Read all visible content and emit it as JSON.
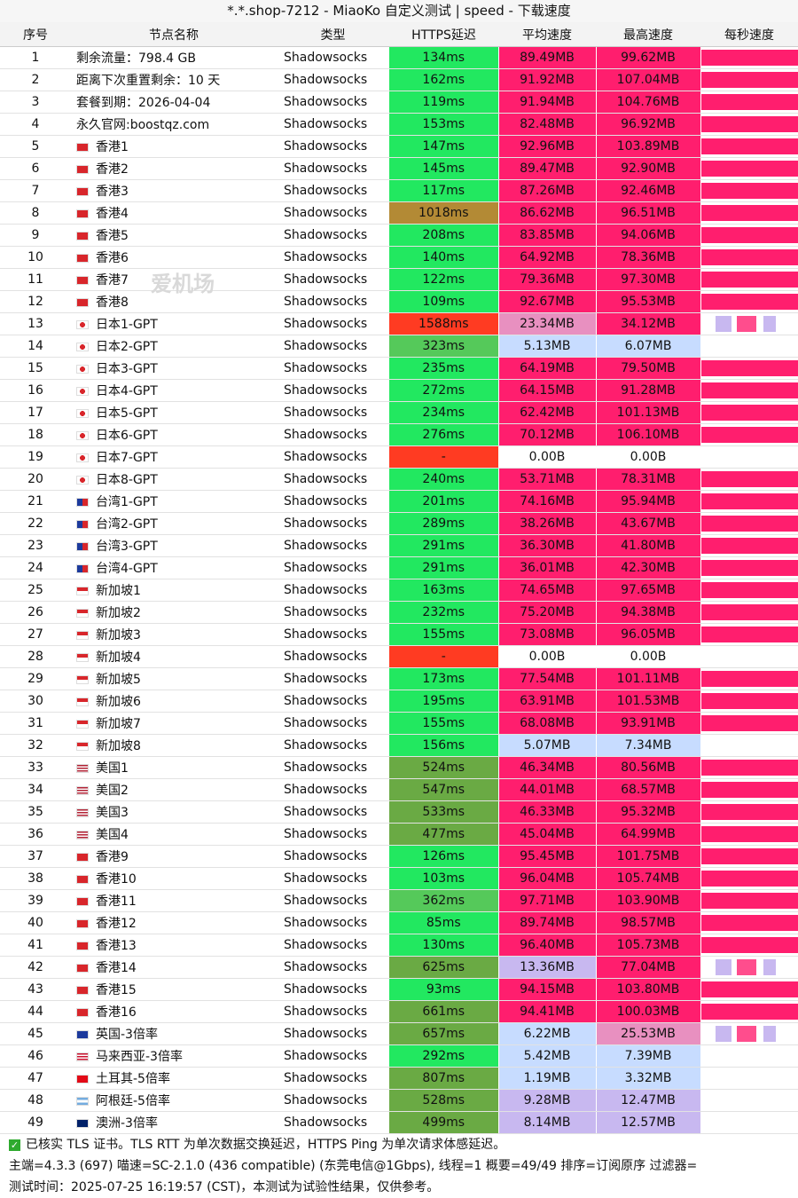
{
  "window": {
    "title": "*.*.shop-7212 - MiaoKo 自定义测试 | speed - 下载速度"
  },
  "watermark": {
    "text": "爱机场"
  },
  "columns": [
    "序号",
    "节点名称",
    "类型",
    "HTTPS延迟",
    "平均速度",
    "最高速度",
    "每秒速度"
  ],
  "colors": {
    "green": "#22e860",
    "green_mid": "#55c95a",
    "green_dark": "#6aaa44",
    "brown": "#b38a35",
    "red": "#ff3b22",
    "pink": "#ff1e6e",
    "pink_light": "#e890c0",
    "lavender": "#c8b8f0",
    "blue_light": "#c7dcff",
    "white": "#ffffff"
  },
  "rows": [
    {
      "idx": "1",
      "flag": "none",
      "name": "剩余流量：798.4 GB",
      "type": "Shadowsocks",
      "lat": "134ms",
      "lat_c": "green",
      "avg": "89.49MB",
      "avg_c": "pink",
      "max": "99.62MB",
      "max_c": "pink",
      "rate": "full"
    },
    {
      "idx": "2",
      "flag": "none",
      "name": "距离下次重置剩余：10 天",
      "type": "Shadowsocks",
      "lat": "162ms",
      "lat_c": "green",
      "avg": "91.92MB",
      "avg_c": "pink",
      "max": "107.04MB",
      "max_c": "pink",
      "rate": "full"
    },
    {
      "idx": "3",
      "flag": "none",
      "name": "套餐到期：2026-04-04",
      "type": "Shadowsocks",
      "lat": "119ms",
      "lat_c": "green",
      "avg": "91.94MB",
      "avg_c": "pink",
      "max": "104.76MB",
      "max_c": "pink",
      "rate": "full"
    },
    {
      "idx": "4",
      "flag": "none",
      "name": "永久官网:boostqz.com",
      "type": "Shadowsocks",
      "lat": "153ms",
      "lat_c": "green",
      "avg": "82.48MB",
      "avg_c": "pink",
      "max": "96.92MB",
      "max_c": "pink",
      "rate": "full"
    },
    {
      "idx": "5",
      "flag": "hk",
      "name": "香港1",
      "type": "Shadowsocks",
      "lat": "147ms",
      "lat_c": "green",
      "avg": "92.96MB",
      "avg_c": "pink",
      "max": "103.89MB",
      "max_c": "pink",
      "rate": "full"
    },
    {
      "idx": "6",
      "flag": "hk",
      "name": "香港2",
      "type": "Shadowsocks",
      "lat": "145ms",
      "lat_c": "green",
      "avg": "89.47MB",
      "avg_c": "pink",
      "max": "92.90MB",
      "max_c": "pink",
      "rate": "full"
    },
    {
      "idx": "7",
      "flag": "hk",
      "name": "香港3",
      "type": "Shadowsocks",
      "lat": "117ms",
      "lat_c": "green",
      "avg": "87.26MB",
      "avg_c": "pink",
      "max": "92.46MB",
      "max_c": "pink",
      "rate": "full"
    },
    {
      "idx": "8",
      "flag": "hk",
      "name": "香港4",
      "type": "Shadowsocks",
      "lat": "1018ms",
      "lat_c": "brown",
      "avg": "86.62MB",
      "avg_c": "pink",
      "max": "96.51MB",
      "max_c": "pink",
      "rate": "full"
    },
    {
      "idx": "9",
      "flag": "hk",
      "name": "香港5",
      "type": "Shadowsocks",
      "lat": "208ms",
      "lat_c": "green",
      "avg": "83.85MB",
      "avg_c": "pink",
      "max": "94.06MB",
      "max_c": "pink",
      "rate": "full"
    },
    {
      "idx": "10",
      "flag": "hk",
      "name": "香港6",
      "type": "Shadowsocks",
      "lat": "140ms",
      "lat_c": "green",
      "avg": "64.92MB",
      "avg_c": "pink",
      "max": "78.36MB",
      "max_c": "pink",
      "rate": "full"
    },
    {
      "idx": "11",
      "flag": "hk",
      "name": "香港7",
      "type": "Shadowsocks",
      "lat": "122ms",
      "lat_c": "green",
      "avg": "79.36MB",
      "avg_c": "pink",
      "max": "97.30MB",
      "max_c": "pink",
      "rate": "full"
    },
    {
      "idx": "12",
      "flag": "hk",
      "name": "香港8",
      "type": "Shadowsocks",
      "lat": "109ms",
      "lat_c": "green",
      "avg": "92.67MB",
      "avg_c": "pink",
      "max": "95.53MB",
      "max_c": "pink",
      "rate": "full"
    },
    {
      "idx": "13",
      "flag": "jp",
      "name": "日本1-GPT",
      "type": "Shadowsocks",
      "lat": "1588ms",
      "lat_c": "red",
      "avg": "23.34MB",
      "avg_c": "pink_light",
      "max": "34.12MB",
      "max_c": "pink",
      "rate": "low"
    },
    {
      "idx": "14",
      "flag": "jp",
      "name": "日本2-GPT",
      "type": "Shadowsocks",
      "lat": "323ms",
      "lat_c": "green_mid",
      "avg": "5.13MB",
      "avg_c": "blue_light",
      "max": "6.07MB",
      "max_c": "blue_light",
      "rate": "none"
    },
    {
      "idx": "15",
      "flag": "jp",
      "name": "日本3-GPT",
      "type": "Shadowsocks",
      "lat": "235ms",
      "lat_c": "green",
      "avg": "64.19MB",
      "avg_c": "pink",
      "max": "79.50MB",
      "max_c": "pink",
      "rate": "full"
    },
    {
      "idx": "16",
      "flag": "jp",
      "name": "日本4-GPT",
      "type": "Shadowsocks",
      "lat": "272ms",
      "lat_c": "green",
      "avg": "64.15MB",
      "avg_c": "pink",
      "max": "91.28MB",
      "max_c": "pink",
      "rate": "full"
    },
    {
      "idx": "17",
      "flag": "jp",
      "name": "日本5-GPT",
      "type": "Shadowsocks",
      "lat": "234ms",
      "lat_c": "green",
      "avg": "62.42MB",
      "avg_c": "pink",
      "max": "101.13MB",
      "max_c": "pink",
      "rate": "full"
    },
    {
      "idx": "18",
      "flag": "jp",
      "name": "日本6-GPT",
      "type": "Shadowsocks",
      "lat": "276ms",
      "lat_c": "green",
      "avg": "70.12MB",
      "avg_c": "pink",
      "max": "106.10MB",
      "max_c": "pink",
      "rate": "full"
    },
    {
      "idx": "19",
      "flag": "jp",
      "name": "日本7-GPT",
      "type": "Shadowsocks",
      "lat": "-",
      "lat_c": "red",
      "avg": "0.00B",
      "avg_c": "white",
      "max": "0.00B",
      "max_c": "white",
      "rate": "none"
    },
    {
      "idx": "20",
      "flag": "jp",
      "name": "日本8-GPT",
      "type": "Shadowsocks",
      "lat": "240ms",
      "lat_c": "green",
      "avg": "53.71MB",
      "avg_c": "pink",
      "max": "78.31MB",
      "max_c": "pink",
      "rate": "full"
    },
    {
      "idx": "21",
      "flag": "tw",
      "name": "台湾1-GPT",
      "type": "Shadowsocks",
      "lat": "201ms",
      "lat_c": "green",
      "avg": "74.16MB",
      "avg_c": "pink",
      "max": "95.94MB",
      "max_c": "pink",
      "rate": "full"
    },
    {
      "idx": "22",
      "flag": "tw",
      "name": "台湾2-GPT",
      "type": "Shadowsocks",
      "lat": "289ms",
      "lat_c": "green",
      "avg": "38.26MB",
      "avg_c": "pink",
      "max": "43.67MB",
      "max_c": "pink",
      "rate": "full"
    },
    {
      "idx": "23",
      "flag": "tw",
      "name": "台湾3-GPT",
      "type": "Shadowsocks",
      "lat": "291ms",
      "lat_c": "green",
      "avg": "36.30MB",
      "avg_c": "pink",
      "max": "41.80MB",
      "max_c": "pink",
      "rate": "full"
    },
    {
      "idx": "24",
      "flag": "tw",
      "name": "台湾4-GPT",
      "type": "Shadowsocks",
      "lat": "291ms",
      "lat_c": "green",
      "avg": "36.01MB",
      "avg_c": "pink",
      "max": "42.30MB",
      "max_c": "pink",
      "rate": "full"
    },
    {
      "idx": "25",
      "flag": "sg",
      "name": "新加坡1",
      "type": "Shadowsocks",
      "lat": "163ms",
      "lat_c": "green",
      "avg": "74.65MB",
      "avg_c": "pink",
      "max": "97.65MB",
      "max_c": "pink",
      "rate": "full"
    },
    {
      "idx": "26",
      "flag": "sg",
      "name": "新加坡2",
      "type": "Shadowsocks",
      "lat": "232ms",
      "lat_c": "green",
      "avg": "75.20MB",
      "avg_c": "pink",
      "max": "94.38MB",
      "max_c": "pink",
      "rate": "full"
    },
    {
      "idx": "27",
      "flag": "sg",
      "name": "新加坡3",
      "type": "Shadowsocks",
      "lat": "155ms",
      "lat_c": "green",
      "avg": "73.08MB",
      "avg_c": "pink",
      "max": "96.05MB",
      "max_c": "pink",
      "rate": "full"
    },
    {
      "idx": "28",
      "flag": "sg",
      "name": "新加坡4",
      "type": "Shadowsocks",
      "lat": "-",
      "lat_c": "red",
      "avg": "0.00B",
      "avg_c": "white",
      "max": "0.00B",
      "max_c": "white",
      "rate": "none"
    },
    {
      "idx": "29",
      "flag": "sg",
      "name": "新加坡5",
      "type": "Shadowsocks",
      "lat": "173ms",
      "lat_c": "green",
      "avg": "77.54MB",
      "avg_c": "pink",
      "max": "101.11MB",
      "max_c": "pink",
      "rate": "full"
    },
    {
      "idx": "30",
      "flag": "sg",
      "name": "新加坡6",
      "type": "Shadowsocks",
      "lat": "195ms",
      "lat_c": "green",
      "avg": "63.91MB",
      "avg_c": "pink",
      "max": "101.53MB",
      "max_c": "pink",
      "rate": "full"
    },
    {
      "idx": "31",
      "flag": "sg",
      "name": "新加坡7",
      "type": "Shadowsocks",
      "lat": "155ms",
      "lat_c": "green",
      "avg": "68.08MB",
      "avg_c": "pink",
      "max": "93.91MB",
      "max_c": "pink",
      "rate": "full"
    },
    {
      "idx": "32",
      "flag": "sg",
      "name": "新加坡8",
      "type": "Shadowsocks",
      "lat": "156ms",
      "lat_c": "green",
      "avg": "5.07MB",
      "avg_c": "blue_light",
      "max": "7.34MB",
      "max_c": "blue_light",
      "rate": "none"
    },
    {
      "idx": "33",
      "flag": "us",
      "name": "美国1",
      "type": "Shadowsocks",
      "lat": "524ms",
      "lat_c": "green_dark",
      "avg": "46.34MB",
      "avg_c": "pink",
      "max": "80.56MB",
      "max_c": "pink",
      "rate": "full"
    },
    {
      "idx": "34",
      "flag": "us",
      "name": "美国2",
      "type": "Shadowsocks",
      "lat": "547ms",
      "lat_c": "green_dark",
      "avg": "44.01MB",
      "avg_c": "pink",
      "max": "68.57MB",
      "max_c": "pink",
      "rate": "full"
    },
    {
      "idx": "35",
      "flag": "us",
      "name": "美国3",
      "type": "Shadowsocks",
      "lat": "533ms",
      "lat_c": "green_dark",
      "avg": "46.33MB",
      "avg_c": "pink",
      "max": "95.32MB",
      "max_c": "pink",
      "rate": "full"
    },
    {
      "idx": "36",
      "flag": "us",
      "name": "美国4",
      "type": "Shadowsocks",
      "lat": "477ms",
      "lat_c": "green_dark",
      "avg": "45.04MB",
      "avg_c": "pink",
      "max": "64.99MB",
      "max_c": "pink",
      "rate": "full"
    },
    {
      "idx": "37",
      "flag": "hk",
      "name": "香港9",
      "type": "Shadowsocks",
      "lat": "126ms",
      "lat_c": "green",
      "avg": "95.45MB",
      "avg_c": "pink",
      "max": "101.75MB",
      "max_c": "pink",
      "rate": "full"
    },
    {
      "idx": "38",
      "flag": "hk",
      "name": "香港10",
      "type": "Shadowsocks",
      "lat": "103ms",
      "lat_c": "green",
      "avg": "96.04MB",
      "avg_c": "pink",
      "max": "105.74MB",
      "max_c": "pink",
      "rate": "full"
    },
    {
      "idx": "39",
      "flag": "hk",
      "name": "香港11",
      "type": "Shadowsocks",
      "lat": "362ms",
      "lat_c": "green_mid",
      "avg": "97.71MB",
      "avg_c": "pink",
      "max": "103.90MB",
      "max_c": "pink",
      "rate": "full"
    },
    {
      "idx": "40",
      "flag": "hk",
      "name": "香港12",
      "type": "Shadowsocks",
      "lat": "85ms",
      "lat_c": "green",
      "avg": "89.74MB",
      "avg_c": "pink",
      "max": "98.57MB",
      "max_c": "pink",
      "rate": "full"
    },
    {
      "idx": "41",
      "flag": "hk",
      "name": "香港13",
      "type": "Shadowsocks",
      "lat": "130ms",
      "lat_c": "green",
      "avg": "96.40MB",
      "avg_c": "pink",
      "max": "105.73MB",
      "max_c": "pink",
      "rate": "full"
    },
    {
      "idx": "42",
      "flag": "hk",
      "name": "香港14",
      "type": "Shadowsocks",
      "lat": "625ms",
      "lat_c": "green_dark",
      "avg": "13.36MB",
      "avg_c": "lavender",
      "max": "77.04MB",
      "max_c": "pink",
      "rate": "low"
    },
    {
      "idx": "43",
      "flag": "hk",
      "name": "香港15",
      "type": "Shadowsocks",
      "lat": "93ms",
      "lat_c": "green",
      "avg": "94.15MB",
      "avg_c": "pink",
      "max": "103.80MB",
      "max_c": "pink",
      "rate": "full"
    },
    {
      "idx": "44",
      "flag": "hk",
      "name": "香港16",
      "type": "Shadowsocks",
      "lat": "661ms",
      "lat_c": "green_dark",
      "avg": "94.41MB",
      "avg_c": "pink",
      "max": "100.03MB",
      "max_c": "pink",
      "rate": "full"
    },
    {
      "idx": "45",
      "flag": "gb",
      "name": "英国-3倍率",
      "type": "Shadowsocks",
      "lat": "657ms",
      "lat_c": "green_dark",
      "avg": "6.22MB",
      "avg_c": "blue_light",
      "max": "25.53MB",
      "max_c": "pink_light",
      "rate": "low"
    },
    {
      "idx": "46",
      "flag": "my",
      "name": "马来西亚-3倍率",
      "type": "Shadowsocks",
      "lat": "292ms",
      "lat_c": "green",
      "avg": "5.42MB",
      "avg_c": "blue_light",
      "max": "7.39MB",
      "max_c": "blue_light",
      "rate": "none"
    },
    {
      "idx": "47",
      "flag": "tr",
      "name": "土耳其-5倍率",
      "type": "Shadowsocks",
      "lat": "807ms",
      "lat_c": "green_dark",
      "avg": "1.19MB",
      "avg_c": "blue_light",
      "max": "3.32MB",
      "max_c": "blue_light",
      "rate": "none"
    },
    {
      "idx": "48",
      "flag": "ar",
      "name": "阿根廷-5倍率",
      "type": "Shadowsocks",
      "lat": "528ms",
      "lat_c": "green_dark",
      "avg": "9.28MB",
      "avg_c": "lavender",
      "max": "12.47MB",
      "max_c": "lavender",
      "rate": "none"
    },
    {
      "idx": "49",
      "flag": "au",
      "name": "澳洲-3倍率",
      "type": "Shadowsocks",
      "lat": "499ms",
      "lat_c": "green_dark",
      "avg": "8.14MB",
      "avg_c": "lavender",
      "max": "12.57MB",
      "max_c": "lavender",
      "rate": "none"
    }
  ],
  "footer": {
    "line1": "已核实 TLS 证书。TLS RTT 为单次数据交换延迟，HTTPS Ping 为单次请求体感延迟。",
    "line2": "主端=4.3.3 (697) 喵速=SC-2.1.0 (436 compatible) (东莞电信@1Gbps), 线程=1 概要=49/49 排序=订阅原序 过滤器=",
    "line3": "测试时间：2025-07-25 16:19:57 (CST)，本测试为试验性结果，仅供参考。"
  }
}
